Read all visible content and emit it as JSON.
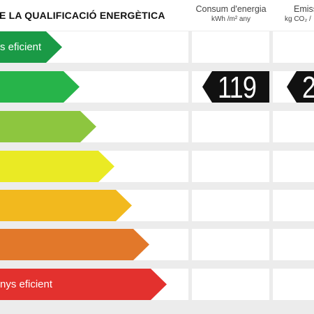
{
  "header": {
    "title": "E LA QUALIFICACIÓ ENERGÈTICA",
    "columns": [
      {
        "label": "Consum d'energia",
        "unit": "kWh /m² any"
      },
      {
        "label": "Emiss",
        "unit": "kg CO₂ /"
      }
    ]
  },
  "bands": [
    {
      "label": "s eficient",
      "color": "#1a9a46"
    },
    {
      "label": "",
      "color": "#27b44a"
    },
    {
      "label": "",
      "color": "#8dc63f"
    },
    {
      "label": "",
      "color": "#eaea24"
    },
    {
      "label": "",
      "color": "#f2b91e"
    },
    {
      "label": "",
      "color": "#e2782a"
    },
    {
      "label": "nys eficient",
      "color": "#e3312e"
    }
  ],
  "values": {
    "consumption": "119",
    "emissions": "2",
    "row": 2
  }
}
